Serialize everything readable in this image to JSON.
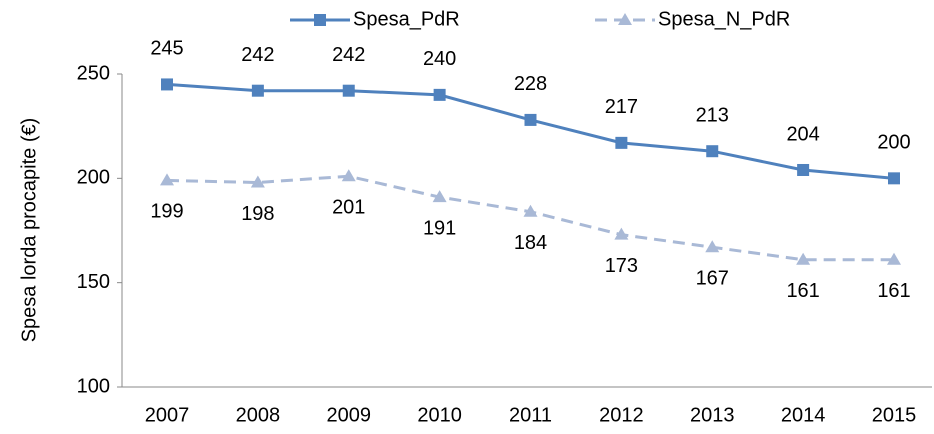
{
  "chart_data": {
    "type": "line",
    "y_label": "Spesa lorda procapite (€)",
    "categories": [
      "2007",
      "2008",
      "2009",
      "2010",
      "2011",
      "2012",
      "2013",
      "2014",
      "2015"
    ],
    "series": [
      {
        "name": "Spesa_PdR",
        "color": "#4f81bd",
        "marker": "square",
        "dash": false,
        "values": [
          245,
          242,
          242,
          240,
          228,
          217,
          213,
          204,
          200
        ]
      },
      {
        "name": "Spesa_N_PdR",
        "color": "#a9b9d6",
        "marker": "triangle",
        "dash": true,
        "values": [
          199,
          198,
          201,
          191,
          184,
          173,
          167,
          161,
          161
        ]
      }
    ],
    "ylim": [
      100,
      250
    ],
    "yticks": [
      100,
      150,
      200,
      250
    ],
    "grid": false,
    "legend": "top"
  }
}
